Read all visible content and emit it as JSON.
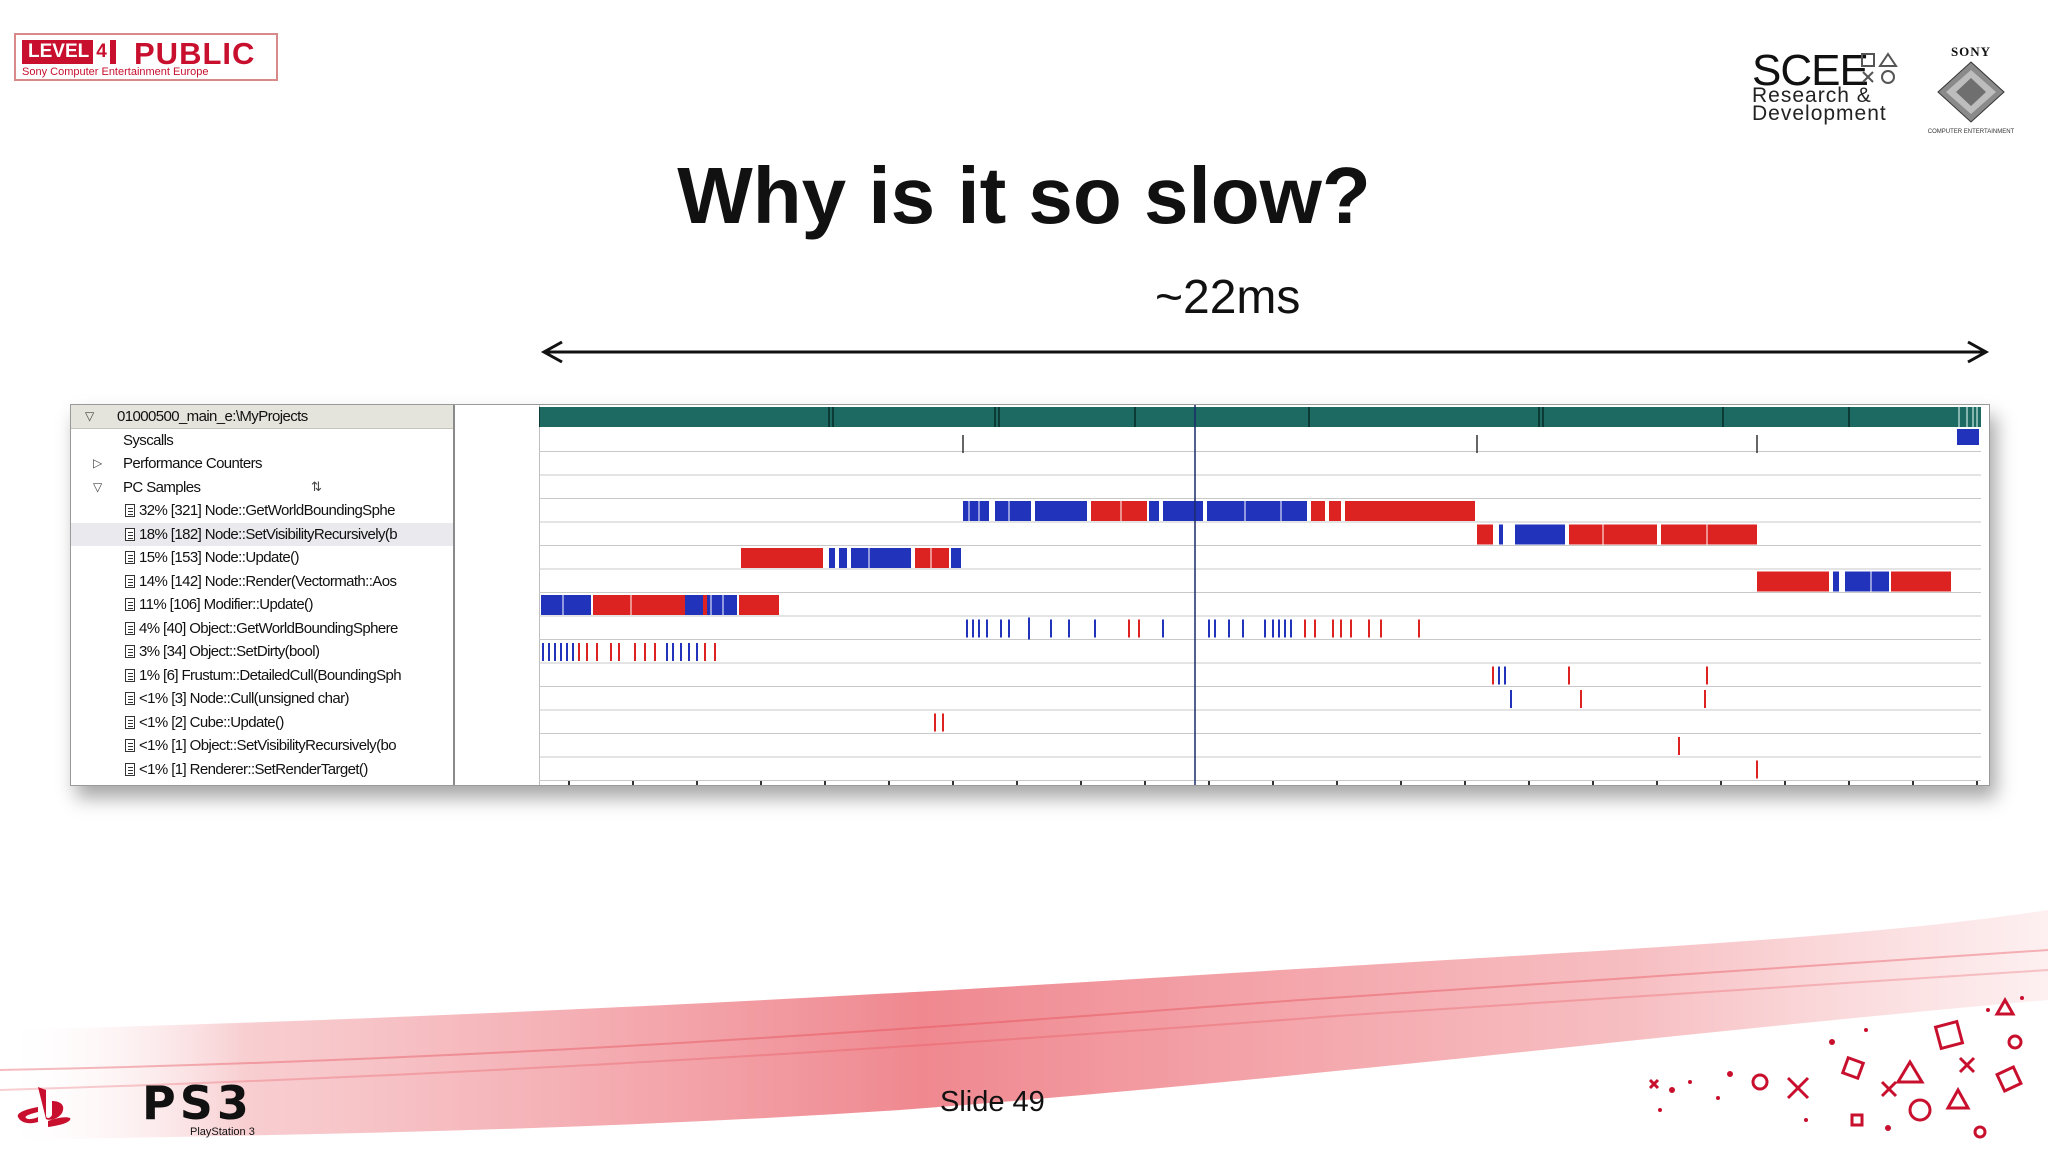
{
  "header": {
    "level_badge": {
      "level": "LEVEL",
      "number": "4",
      "label": "PUBLIC",
      "sub": "Sony Computer Entertainment Europe"
    },
    "scee": {
      "top": "SCEE",
      "line1": "Research &",
      "line2": "Development"
    },
    "sony": {
      "brand": "SONY",
      "small": "COMPUTER ENTERTAINMENT"
    }
  },
  "slide": {
    "title": "Why is it so slow?",
    "duration_label": "~22ms",
    "number_label": "Slide 49"
  },
  "profiler": {
    "tree": [
      {
        "label": "01000500_main_e:\\MyProjects",
        "kind": "root"
      },
      {
        "label": "Syscalls",
        "kind": "plain"
      },
      {
        "label": "Performance Counters",
        "kind": "collapsed"
      },
      {
        "label": "PC Samples",
        "kind": "expanded"
      },
      {
        "label": "32% [321] Node::GetWorldBoundingSphe",
        "kind": "leaf"
      },
      {
        "label": "18% [182] Node::SetVisibilityRecursively(b",
        "kind": "leaf",
        "selected": true
      },
      {
        "label": "15% [153] Node::Update()",
        "kind": "leaf"
      },
      {
        "label": "14% [142] Node::Render(Vectormath::Aos",
        "kind": "leaf"
      },
      {
        "label": "11% [106] Modifier::Update()",
        "kind": "leaf"
      },
      {
        "label": "4% [40] Object::GetWorldBoundingSphere",
        "kind": "leaf"
      },
      {
        "label": "3% [34] Object::SetDirty(bool)",
        "kind": "leaf"
      },
      {
        "label": "1% [6] Frustum::DetailedCull(BoundingSph",
        "kind": "leaf"
      },
      {
        "label": "<1% [3] Node::Cull(unsigned char)",
        "kind": "leaf"
      },
      {
        "label": "<1% [2] Cube::Update()",
        "kind": "leaf"
      },
      {
        "label": "<1% [1] Object::SetVisibilityRecursively(bo",
        "kind": "leaf"
      },
      {
        "label": "<1% [1] Renderer::SetRenderTarget()",
        "kind": "leaf"
      }
    ]
  },
  "colors": {
    "bar_red": "#dd2222",
    "bar_blue": "#2233bb",
    "header_teal": "#1c6a62",
    "accent_red": "#c8102e"
  },
  "icons": [
    "playstation-logo",
    "ps3-logo",
    "playstation-symbols"
  ]
}
